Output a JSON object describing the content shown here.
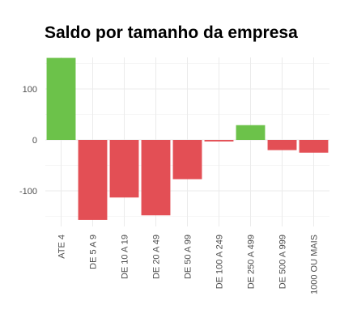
{
  "chart_data": {
    "type": "bar",
    "title": "Saldo por tamanho da empresa",
    "xlabel": "",
    "ylabel": "",
    "categories": [
      "ATE 4",
      "DE 5 A 9",
      "DE 10 A 19",
      "DE 20 A 49",
      "DE 50 A 99",
      "DE 100 A 249",
      "DE 250 A 499",
      "DE 500 A 999",
      "1000 OU MAIS"
    ],
    "values": [
      161,
      -157,
      -113,
      -148,
      -77,
      -3,
      29,
      -20,
      -25
    ],
    "ylim": [
      -160,
      165
    ],
    "yticks": [
      100,
      0,
      -100
    ],
    "grid": true,
    "legend": "none",
    "colors": {
      "positive": "#6cc24a",
      "negative": "#e34f55"
    }
  }
}
